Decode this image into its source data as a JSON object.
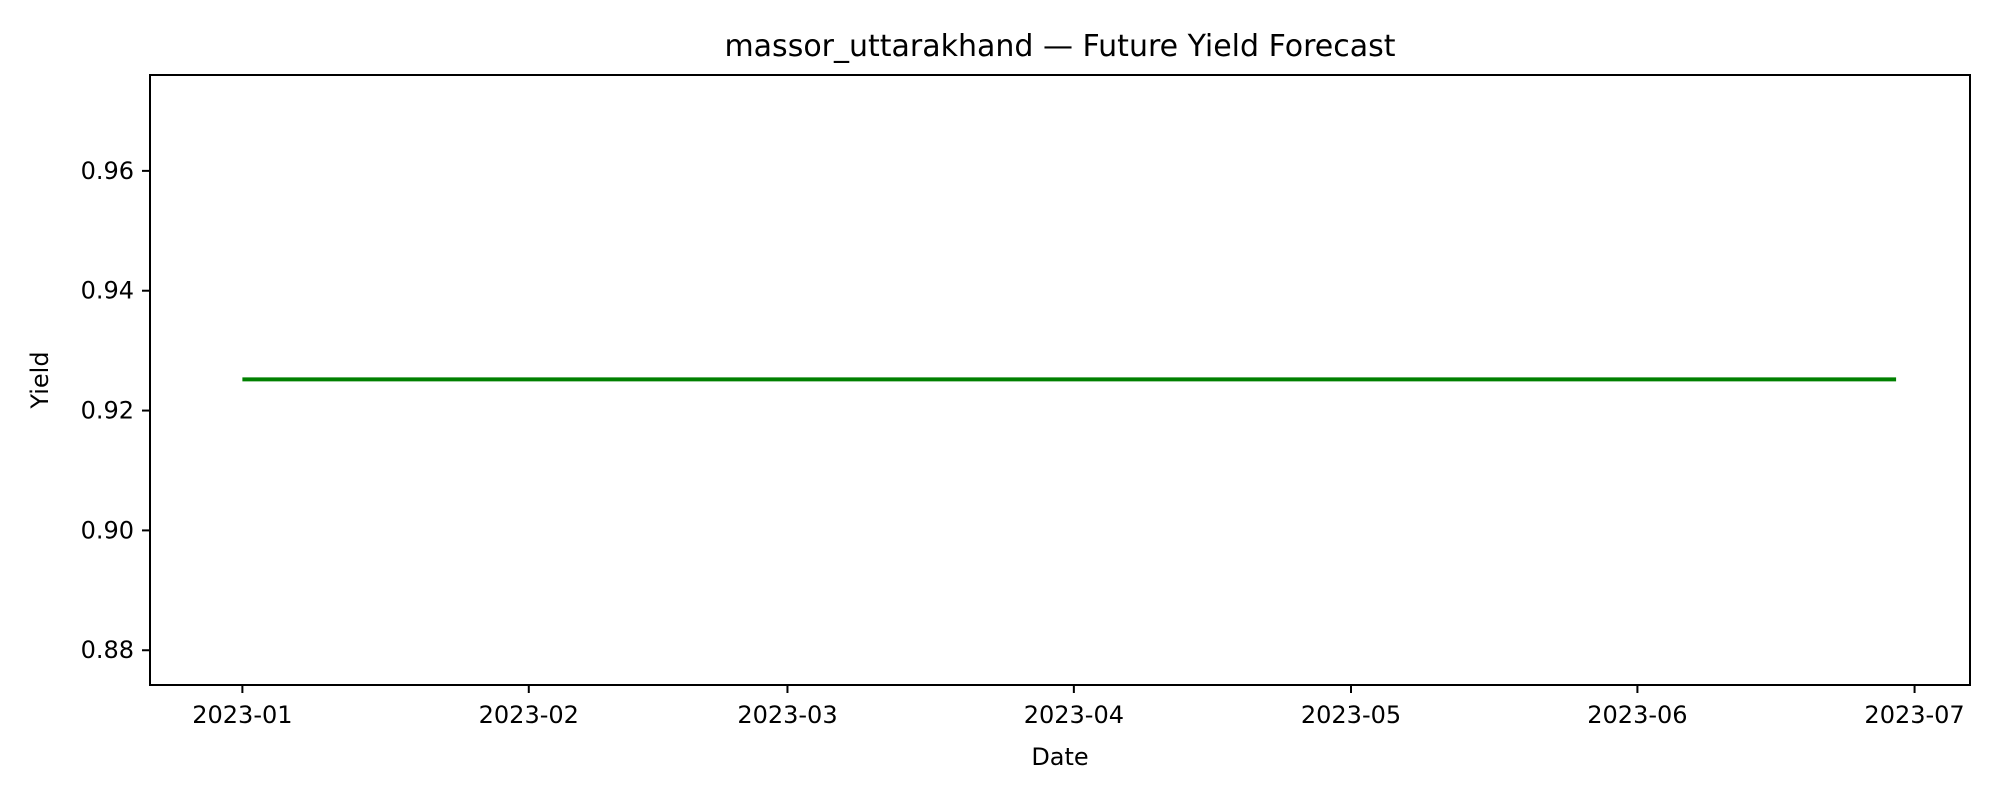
{
  "chart_data": {
    "type": "line",
    "title": "massor_uttarakhand — Future Yield Forecast",
    "xlabel": "Date",
    "ylabel": "Yield",
    "xlim": [
      "2022-12-22",
      "2023-07-07"
    ],
    "ylim": [
      0.8742,
      0.976
    ],
    "x_ticks": [
      "2023-01",
      "2023-02",
      "2023-03",
      "2023-04",
      "2023-05",
      "2023-06",
      "2023-07"
    ],
    "y_ticks": [
      "0.88",
      "0.90",
      "0.92",
      "0.94",
      "0.96"
    ],
    "grid": false,
    "series": [
      {
        "color": "#008000",
        "x": [
          "2023-01-01",
          "2023-06-29"
        ],
        "y": [
          0.9252,
          0.9252
        ]
      }
    ]
  }
}
